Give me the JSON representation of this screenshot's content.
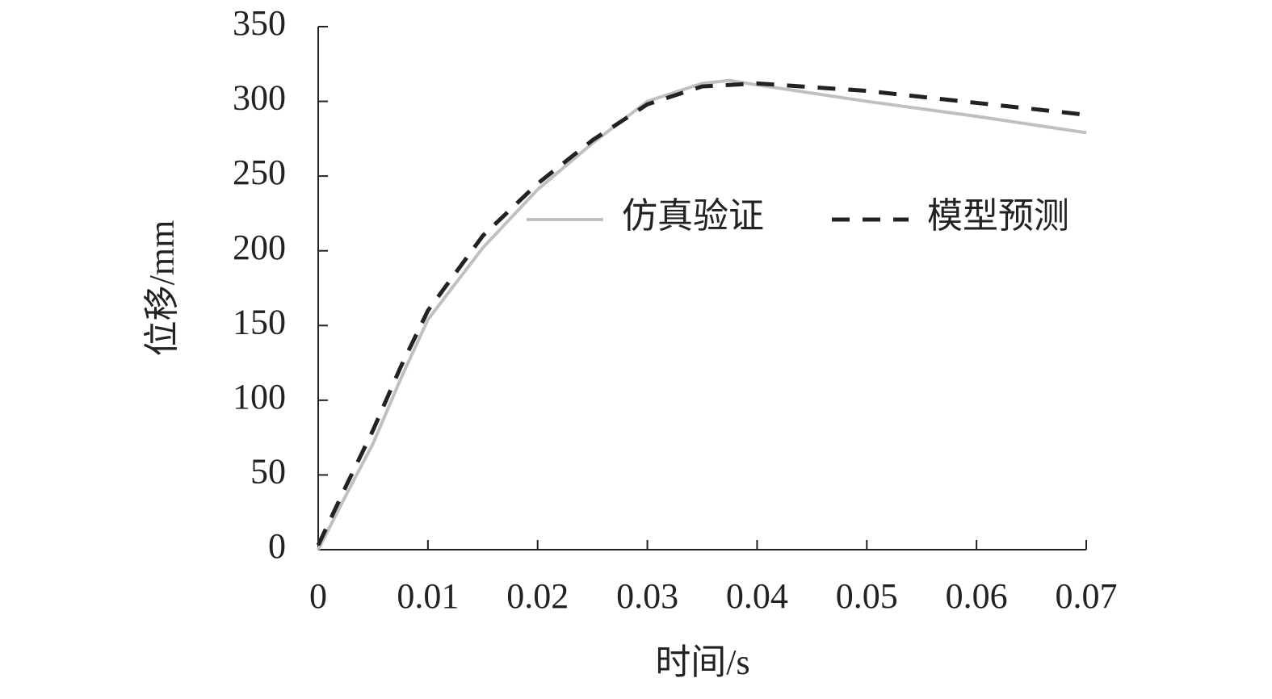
{
  "chart_data": {
    "type": "line",
    "x": [
      0,
      0.0025,
      0.005,
      0.0075,
      0.01,
      0.015,
      0.02,
      0.025,
      0.03,
      0.035,
      0.0375,
      0.04,
      0.05,
      0.06,
      0.07
    ],
    "series": [
      {
        "name": "仿真验证",
        "color": "#c0c0c0",
        "dash": false,
        "values": [
          0,
          36,
          71,
          114,
          154,
          202,
          241,
          272,
          300,
          312,
          314,
          311,
          300,
          290,
          279
        ]
      },
      {
        "name": "模型预测",
        "color": "#222222",
        "dash": true,
        "values": [
          3,
          42,
          80,
          122,
          160,
          210,
          245,
          274,
          298,
          310,
          311,
          312,
          307,
          299,
          291
        ]
      }
    ],
    "xlabel": "时间/s",
    "ylabel": "位移/mm",
    "xlim": [
      0,
      0.07
    ],
    "xticks": [
      0,
      0.01,
      0.02,
      0.03,
      0.04,
      0.05,
      0.06,
      0.07
    ],
    "ylim": [
      0,
      350
    ],
    "yticks": [
      0,
      50,
      100,
      150,
      200,
      250,
      300,
      350
    ],
    "grid": false,
    "legend": "center"
  }
}
